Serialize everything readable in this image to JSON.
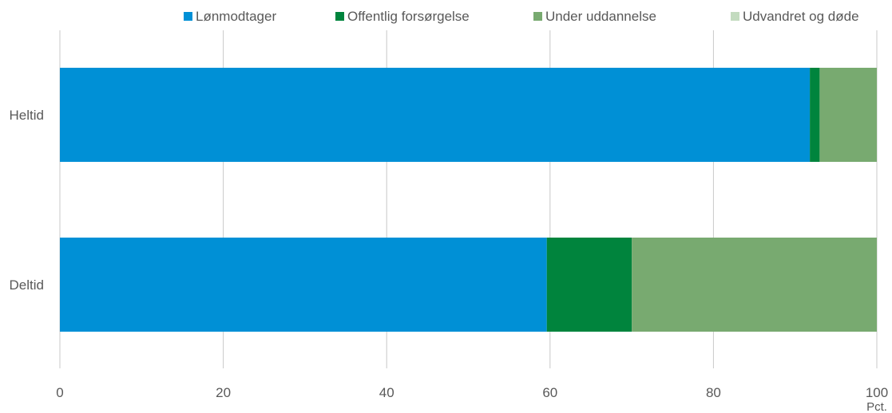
{
  "chart_data": {
    "type": "bar",
    "orientation": "horizontal",
    "stacked": true,
    "categories": [
      "Heltid",
      "Deltid"
    ],
    "series": [
      {
        "name": "Lønmodtager",
        "values": [
          91.8,
          59.6
        ],
        "color": "#0090d6"
      },
      {
        "name": "Offentlig forsørgelse",
        "values": [
          1.2,
          10.4
        ],
        "color": "#00843d"
      },
      {
        "name": "Under uddannelse",
        "values": [
          7.0,
          30.0
        ],
        "color": "#78aa70"
      },
      {
        "name": "Udvandret og døde",
        "values": [
          0,
          0
        ],
        "color": "#c3dbbf"
      }
    ],
    "xlim": [
      0,
      100
    ],
    "xticks": [
      "0",
      "20",
      "40",
      "60",
      "80",
      "100"
    ],
    "x_unit": "Pct.",
    "grid": "vertical",
    "legend_position": "top"
  }
}
